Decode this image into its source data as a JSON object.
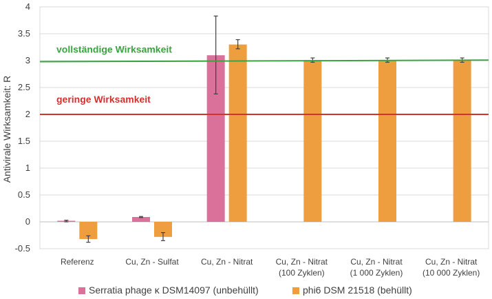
{
  "chart_data": {
    "type": "bar",
    "ylabel": "Antivirale Wirksamkeit: R",
    "ylim": [
      -0.5,
      4
    ],
    "yticks": [
      -0.5,
      0,
      0.5,
      1,
      1.5,
      2,
      2.5,
      3,
      3.5,
      4
    ],
    "grid": true,
    "legend_position": "bottom",
    "categories": [
      [
        "Referenz"
      ],
      [
        "Cu, Zn - Sulfat"
      ],
      [
        "Cu, Zn - Nitrat"
      ],
      [
        "Cu, Zn - Nitrat",
        "(100 Zyklen)"
      ],
      [
        "Cu, Zn - Nitrat",
        "(1 000 Zyklen)"
      ],
      [
        "Cu, Zn - Nitrat",
        "(10 000 Zyklen)"
      ]
    ],
    "series": [
      {
        "name": "Serratia phage κ DSM14097 (unbehüllt)",
        "color": "#d9719b",
        "values": [
          0.02,
          0.09,
          3.1,
          null,
          null,
          null
        ],
        "error_low": [
          0.0,
          0.08,
          2.38,
          null,
          null,
          null
        ],
        "error_high": [
          0.03,
          0.1,
          3.83,
          null,
          null,
          null
        ]
      },
      {
        "name": "phi6 DSM 21518 (behüllt)",
        "color": "#ee9e3e",
        "values": [
          -0.32,
          -0.28,
          3.3,
          3.01,
          3.01,
          3.01
        ],
        "error_low": [
          -0.38,
          -0.35,
          3.22,
          2.97,
          2.97,
          2.97
        ],
        "error_high": [
          -0.26,
          -0.2,
          3.39,
          3.05,
          3.05,
          3.05
        ]
      }
    ],
    "reference_lines": [
      {
        "label": "vollständige Wirksamkeit",
        "y_start": 2.98,
        "y_end": 3.01,
        "color": "#3aa342"
      },
      {
        "label": "geringe Wirksamkeit",
        "y_start": 2.0,
        "y_end": 2.0,
        "color": "#d2322d"
      }
    ]
  }
}
